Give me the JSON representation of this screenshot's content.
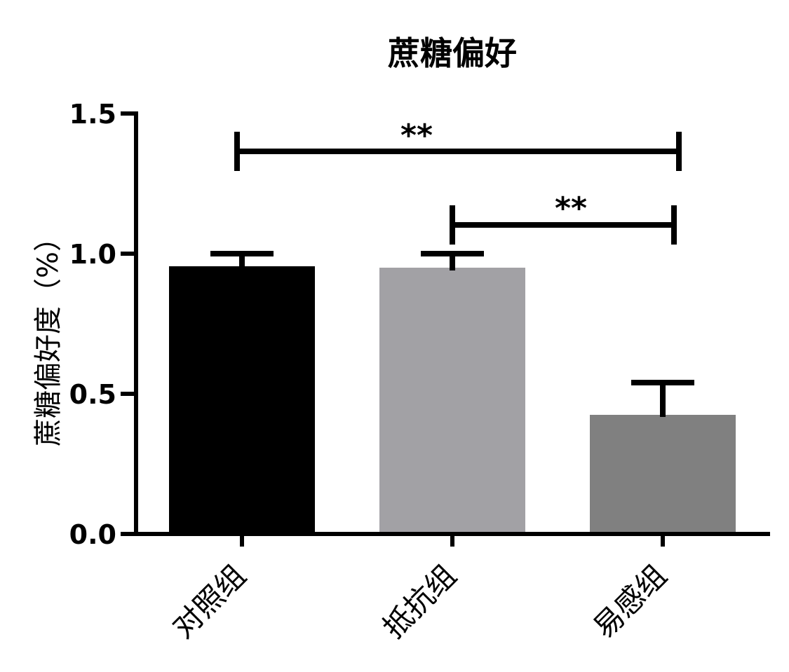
{
  "chart_data": {
    "type": "bar",
    "title": "蔗糖偏好",
    "ylabel": "蔗糖偏好度（%）",
    "xlabel": "",
    "ylim": [
      0,
      1.5
    ],
    "yticks": [
      0.0,
      0.5,
      1.0,
      1.5
    ],
    "ytick_labels": [
      "0.0",
      "0.5",
      "1.0",
      "1.5"
    ],
    "categories": [
      "对照组",
      "抵抗组",
      "易感组"
    ],
    "values": [
      0.955,
      0.95,
      0.425
    ],
    "errors": [
      0.045,
      0.05,
      0.115
    ],
    "colors": [
      "#000000",
      "#a2a1a5",
      "#808080"
    ],
    "grid": false,
    "legend": "none",
    "significance": [
      {
        "from": 0,
        "to": 2,
        "label": "**"
      },
      {
        "from": 1,
        "to": 2,
        "label": "**"
      }
    ]
  }
}
